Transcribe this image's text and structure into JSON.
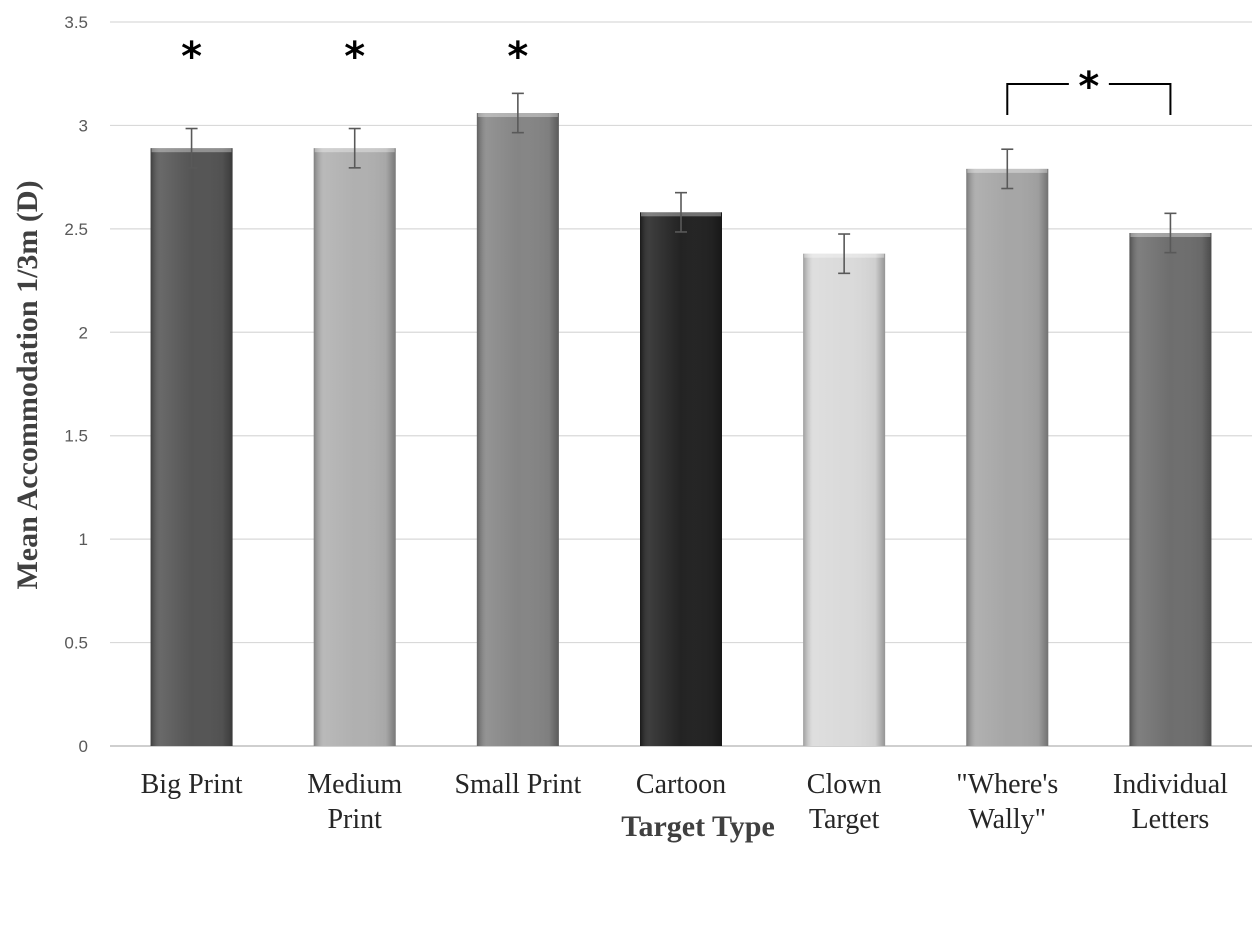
{
  "chart_data": {
    "type": "bar",
    "categories": [
      [
        "Big Print"
      ],
      [
        "Medium",
        "Print"
      ],
      [
        "Small Print"
      ],
      [
        "Cartoon"
      ],
      [
        "Clown",
        "Target"
      ],
      [
        "\"Where's",
        "Wally\""
      ],
      [
        "Individual",
        "Letters"
      ]
    ],
    "values": [
      2.89,
      2.89,
      3.06,
      2.58,
      2.38,
      2.79,
      2.48
    ],
    "error": [
      0.095,
      0.095,
      0.095,
      0.095,
      0.095,
      0.095,
      0.095
    ],
    "bar_colors": [
      "#555555",
      "#b0b0b0",
      "#858585",
      "#232323",
      "#dadada",
      "#a6a6a6",
      "#6e6e6e"
    ],
    "xlabel": "Target Type",
    "ylabel": "Mean Accommodation 1/3m (D)",
    "ylim": [
      0,
      3.5
    ],
    "yticks": [
      "0",
      "0.5",
      "1",
      "1.5",
      "2",
      "2.5",
      "3",
      "3.5"
    ],
    "grid": true,
    "significance": {
      "symbol": "*",
      "single": [
        0,
        1,
        2
      ],
      "bracket": [
        5,
        6
      ]
    }
  }
}
